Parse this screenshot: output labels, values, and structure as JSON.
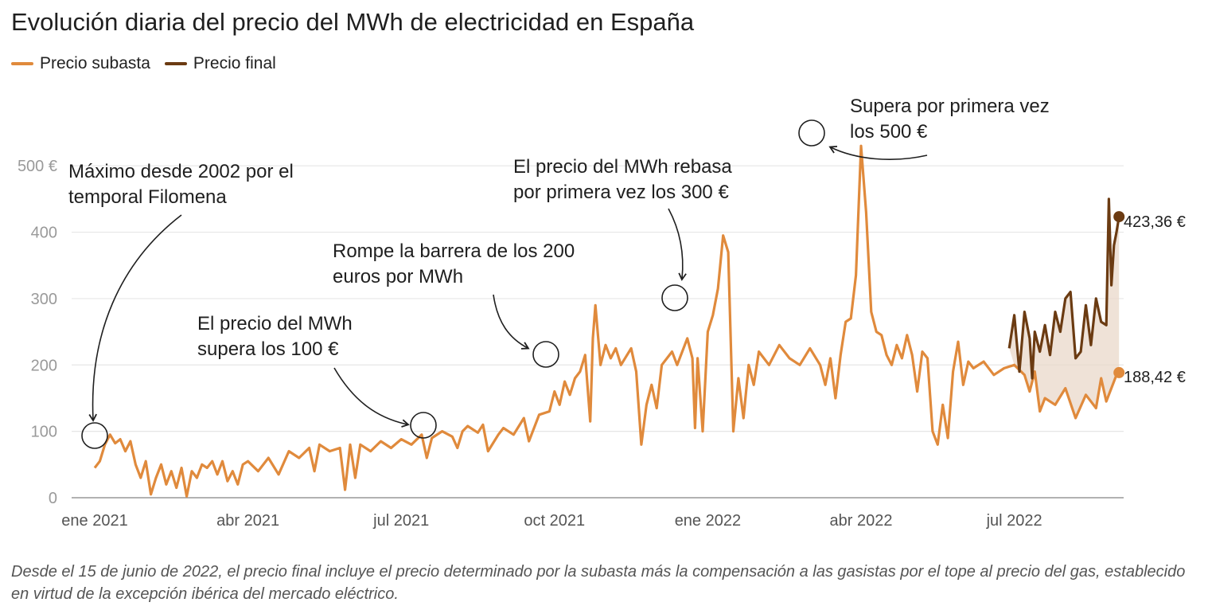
{
  "chart_data": {
    "type": "line",
    "title": "Evolución diaria del precio del MWh de electricidad en España",
    "ylim": [
      0,
      550
    ],
    "y_ticks": [
      "0",
      "100",
      "200",
      "300",
      "400",
      "500 €"
    ],
    "x_ticks": [
      {
        "t": 0,
        "label": "ene 2021"
      },
      {
        "t": 3,
        "label": "abr 2021"
      },
      {
        "t": 6,
        "label": "jul 2021"
      },
      {
        "t": 9,
        "label": "oct 2021"
      },
      {
        "t": 12,
        "label": "ene 2022"
      },
      {
        "t": 15,
        "label": "abr 2022"
      },
      {
        "t": 18,
        "label": "jul 2022"
      }
    ],
    "x_unit": "months since 1 Jan 2021",
    "x_range": [
      -0.25,
      20.1
    ],
    "series": [
      {
        "name": "Precio subasta",
        "color": "#e08a3c",
        "end_value": 188.42,
        "end_label": "188,42 €",
        "points": [
          [
            0,
            45
          ],
          [
            0.1,
            55
          ],
          [
            0.2,
            80
          ],
          [
            0.3,
            95
          ],
          [
            0.4,
            82
          ],
          [
            0.5,
            88
          ],
          [
            0.6,
            70
          ],
          [
            0.7,
            85
          ],
          [
            0.8,
            50
          ],
          [
            0.9,
            30
          ],
          [
            1.0,
            55
          ],
          [
            1.1,
            5
          ],
          [
            1.2,
            30
          ],
          [
            1.3,
            50
          ],
          [
            1.4,
            20
          ],
          [
            1.5,
            40
          ],
          [
            1.6,
            15
          ],
          [
            1.7,
            45
          ],
          [
            1.8,
            2
          ],
          [
            1.9,
            40
          ],
          [
            2.0,
            30
          ],
          [
            2.1,
            50
          ],
          [
            2.2,
            45
          ],
          [
            2.3,
            55
          ],
          [
            2.4,
            35
          ],
          [
            2.5,
            55
          ],
          [
            2.6,
            25
          ],
          [
            2.7,
            40
          ],
          [
            2.8,
            20
          ],
          [
            2.9,
            50
          ],
          [
            3.0,
            55
          ],
          [
            3.2,
            40
          ],
          [
            3.4,
            60
          ],
          [
            3.6,
            35
          ],
          [
            3.8,
            70
          ],
          [
            4.0,
            60
          ],
          [
            4.2,
            75
          ],
          [
            4.3,
            40
          ],
          [
            4.4,
            80
          ],
          [
            4.6,
            70
          ],
          [
            4.8,
            75
          ],
          [
            4.9,
            12
          ],
          [
            5.0,
            80
          ],
          [
            5.1,
            30
          ],
          [
            5.2,
            80
          ],
          [
            5.4,
            70
          ],
          [
            5.6,
            85
          ],
          [
            5.8,
            75
          ],
          [
            6.0,
            88
          ],
          [
            6.2,
            80
          ],
          [
            6.4,
            95
          ],
          [
            6.5,
            60
          ],
          [
            6.6,
            90
          ],
          [
            6.8,
            100
          ],
          [
            7.0,
            92
          ],
          [
            7.1,
            75
          ],
          [
            7.2,
            100
          ],
          [
            7.3,
            108
          ],
          [
            7.5,
            98
          ],
          [
            7.6,
            110
          ],
          [
            7.7,
            70
          ],
          [
            7.9,
            95
          ],
          [
            8.0,
            105
          ],
          [
            8.2,
            95
          ],
          [
            8.4,
            120
          ],
          [
            8.5,
            85
          ],
          [
            8.7,
            125
          ],
          [
            8.9,
            130
          ],
          [
            9.0,
            160
          ],
          [
            9.1,
            140
          ],
          [
            9.2,
            175
          ],
          [
            9.3,
            155
          ],
          [
            9.4,
            180
          ],
          [
            9.5,
            190
          ],
          [
            9.6,
            215
          ],
          [
            9.7,
            115
          ],
          [
            9.75,
            240
          ],
          [
            9.8,
            290
          ],
          [
            9.9,
            200
          ],
          [
            10.0,
            230
          ],
          [
            10.1,
            210
          ],
          [
            10.2,
            225
          ],
          [
            10.3,
            200
          ],
          [
            10.5,
            225
          ],
          [
            10.6,
            190
          ],
          [
            10.7,
            80
          ],
          [
            10.8,
            140
          ],
          [
            10.9,
            170
          ],
          [
            11.0,
            135
          ],
          [
            11.1,
            200
          ],
          [
            11.3,
            220
          ],
          [
            11.4,
            200
          ],
          [
            11.6,
            240
          ],
          [
            11.7,
            210
          ],
          [
            11.75,
            105
          ],
          [
            11.8,
            210
          ],
          [
            11.9,
            100
          ],
          [
            12.0,
            250
          ],
          [
            12.1,
            275
          ],
          [
            12.2,
            315
          ],
          [
            12.3,
            395
          ],
          [
            12.4,
            370
          ],
          [
            12.5,
            100
          ],
          [
            12.6,
            180
          ],
          [
            12.7,
            120
          ],
          [
            12.8,
            200
          ],
          [
            12.9,
            170
          ],
          [
            13.0,
            220
          ],
          [
            13.2,
            200
          ],
          [
            13.4,
            230
          ],
          [
            13.6,
            210
          ],
          [
            13.8,
            200
          ],
          [
            14.0,
            225
          ],
          [
            14.2,
            200
          ],
          [
            14.3,
            170
          ],
          [
            14.4,
            210
          ],
          [
            14.5,
            150
          ],
          [
            14.6,
            215
          ],
          [
            14.7,
            265
          ],
          [
            14.8,
            270
          ],
          [
            14.9,
            335
          ],
          [
            15.0,
            530
          ],
          [
            15.1,
            430
          ],
          [
            15.2,
            280
          ],
          [
            15.3,
            250
          ],
          [
            15.4,
            245
          ],
          [
            15.5,
            215
          ],
          [
            15.6,
            200
          ],
          [
            15.7,
            230
          ],
          [
            15.8,
            210
          ],
          [
            15.9,
            245
          ],
          [
            16.0,
            215
          ],
          [
            16.1,
            160
          ],
          [
            16.2,
            220
          ],
          [
            16.3,
            210
          ],
          [
            16.4,
            100
          ],
          [
            16.5,
            80
          ],
          [
            16.6,
            140
          ],
          [
            16.7,
            90
          ],
          [
            16.8,
            190
          ],
          [
            16.9,
            235
          ],
          [
            17.0,
            170
          ],
          [
            17.1,
            205
          ],
          [
            17.2,
            195
          ],
          [
            17.4,
            205
          ],
          [
            17.6,
            185
          ],
          [
            17.8,
            195
          ],
          [
            18.0,
            200
          ],
          [
            18.2,
            185
          ],
          [
            18.3,
            160
          ],
          [
            18.4,
            190
          ],
          [
            18.5,
            130
          ],
          [
            18.6,
            150
          ],
          [
            18.8,
            140
          ],
          [
            19.0,
            165
          ],
          [
            19.2,
            120
          ],
          [
            19.4,
            155
          ],
          [
            19.6,
            135
          ],
          [
            19.7,
            180
          ],
          [
            19.8,
            145
          ],
          [
            20.0,
            185
          ],
          [
            20.05,
            188.42
          ]
        ]
      },
      {
        "name": "Precio final",
        "color": "#6b3b12",
        "end_value": 423.36,
        "end_label": "423,36 €",
        "points": [
          [
            17.9,
            225
          ],
          [
            18.0,
            275
          ],
          [
            18.1,
            190
          ],
          [
            18.2,
            280
          ],
          [
            18.3,
            240
          ],
          [
            18.35,
            180
          ],
          [
            18.4,
            250
          ],
          [
            18.5,
            220
          ],
          [
            18.6,
            260
          ],
          [
            18.7,
            215
          ],
          [
            18.8,
            280
          ],
          [
            18.9,
            250
          ],
          [
            19.0,
            300
          ],
          [
            19.1,
            310
          ],
          [
            19.2,
            210
          ],
          [
            19.3,
            220
          ],
          [
            19.4,
            290
          ],
          [
            19.5,
            230
          ],
          [
            19.6,
            300
          ],
          [
            19.7,
            265
          ],
          [
            19.8,
            260
          ],
          [
            19.85,
            450
          ],
          [
            19.9,
            320
          ],
          [
            19.95,
            380
          ],
          [
            20.0,
            400
          ],
          [
            20.05,
            423.36
          ]
        ]
      }
    ],
    "annotations": [
      {
        "lines": [
          "Máximo desde 2002 por el",
          "temporal Filomena"
        ]
      },
      {
        "lines": [
          "El precio del MWh",
          "supera los 100 €"
        ]
      },
      {
        "lines": [
          "Rompe la barrera de los 200",
          "euros por MWh"
        ]
      },
      {
        "lines": [
          "El precio del MWh rebasa",
          "por primera vez los 300 €"
        ]
      },
      {
        "lines": [
          "Supera por primera vez",
          "los 500 €"
        ]
      }
    ]
  },
  "legend": {
    "items": [
      {
        "label": "Precio subasta",
        "color": "#e08a3c"
      },
      {
        "label": "Precio final",
        "color": "#6b3b12"
      }
    ]
  },
  "note": "Desde el 15 de junio de 2022, el precio final incluye el precio determinado por la subasta más la compensación a las gasistas por el tope al precio del gas, establecido en virtud de la excepción ibérica del mercado eléctrico."
}
